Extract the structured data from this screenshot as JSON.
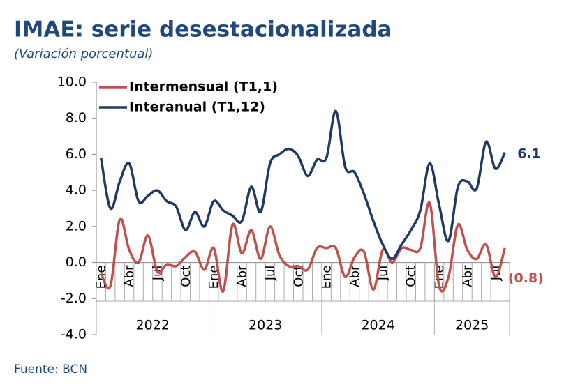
{
  "chart_data": {
    "type": "line",
    "title": "IMAE: serie desestacionalizada",
    "subtitle": "(Variación porcentual)",
    "source": "Fuente: BCN",
    "categories": [
      "Ene",
      null,
      null,
      "Abr",
      null,
      null,
      "Jul",
      null,
      null,
      "Oct",
      null,
      null,
      "Ene",
      null,
      null,
      "Abr",
      null,
      null,
      "Jul",
      null,
      null,
      "Oct",
      null,
      null,
      "Ene",
      null,
      null,
      "Abr",
      null,
      null,
      "Jul",
      null,
      null,
      "Oct",
      null,
      null,
      "Ene",
      null,
      null,
      "Abr",
      null,
      null,
      "Jul",
      null
    ],
    "years": [
      "2022",
      "2023",
      "2024",
      "2025"
    ],
    "series": [
      {
        "name": "Intermensual (T1,1)",
        "color": "#c0504d",
        "values": [
          -0.6,
          -1.3,
          2.4,
          0.7,
          0.0,
          1.5,
          -0.5,
          -0.1,
          -0.2,
          0.3,
          0.6,
          -0.4,
          0.8,
          -1.6,
          2.1,
          0.5,
          1.8,
          0.2,
          2.0,
          0.4,
          -0.2,
          -0.2,
          -0.4,
          0.8,
          0.8,
          0.8,
          -0.8,
          0.3,
          0.6,
          -1.5,
          0.7,
          0.0,
          0.8,
          0.7,
          0.8,
          3.3,
          -1.3,
          -0.8,
          2.1,
          0.7,
          0.2,
          1.0,
          -0.8,
          0.8
        ],
        "value_labels": [
          null,
          null,
          null,
          null,
          null,
          null,
          null,
          null,
          null,
          null,
          null,
          null,
          null,
          null,
          null,
          null,
          null,
          null,
          null,
          null,
          null,
          null,
          null,
          null,
          null,
          null,
          null,
          null,
          null,
          null,
          null,
          null,
          null,
          null,
          null,
          null,
          null,
          null,
          null,
          null,
          null,
          null,
          "(0.8)",
          null
        ]
      },
      {
        "name": "Interanual (T1,12)",
        "color": "#1f3864",
        "values": [
          5.8,
          3.0,
          4.5,
          5.5,
          3.4,
          3.7,
          4.0,
          3.4,
          3.1,
          1.8,
          2.8,
          2.0,
          3.4,
          2.9,
          2.6,
          2.3,
          4.2,
          2.8,
          5.5,
          6.0,
          6.3,
          5.9,
          4.8,
          5.7,
          5.8,
          8.4,
          5.3,
          5.0,
          3.8,
          2.3,
          1.0,
          0.2,
          1.0,
          1.8,
          2.9,
          5.5,
          3.2,
          1.2,
          4.2,
          4.5,
          4.1,
          6.7,
          5.2,
          6.1
        ],
        "value_labels": [
          null,
          null,
          null,
          null,
          null,
          null,
          null,
          null,
          null,
          null,
          null,
          null,
          null,
          null,
          null,
          null,
          null,
          null,
          null,
          null,
          null,
          null,
          null,
          null,
          null,
          null,
          null,
          null,
          null,
          null,
          null,
          null,
          null,
          null,
          null,
          null,
          null,
          null,
          null,
          null,
          null,
          null,
          null,
          "6.1"
        ]
      }
    ],
    "ylim": [
      -4,
      10
    ],
    "yticks": [
      {
        "value": -4,
        "label": "-4.0"
      },
      {
        "value": -2,
        "label": "-2.0"
      },
      {
        "value": 0,
        "label": "0.0"
      },
      {
        "value": 2,
        "label": "2.0"
      },
      {
        "value": 4,
        "label": "4.0"
      },
      {
        "value": 6,
        "label": "6.0"
      },
      {
        "value": 8,
        "label": "8.0"
      },
      {
        "value": 10,
        "label": "10.0"
      }
    ],
    "legend": "top-left",
    "grid": false
  }
}
